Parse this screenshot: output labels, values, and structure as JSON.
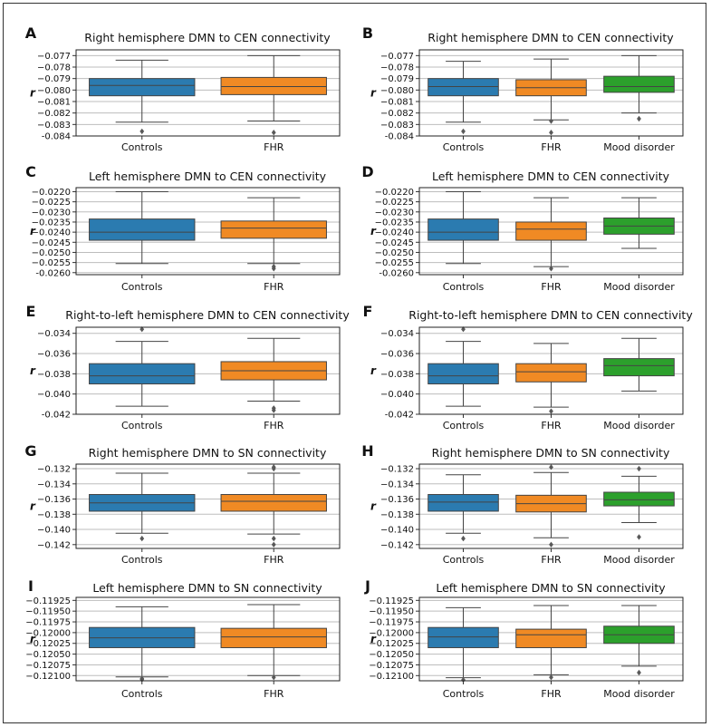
{
  "figure": {
    "ylabel": "r",
    "colors": {
      "Controls": "#2b7bb0",
      "FHR": "#f08a24",
      "Mood disorder": "#2ca02c",
      "whisker": "#444444",
      "grid": "#bdbdbd",
      "flier": "#595959"
    }
  },
  "chart_data": [
    {
      "letter": "A",
      "type": "box",
      "title": "Right hemisphere DMN to CEN connectivity",
      "ylabel": "r",
      "ylim": [
        -0.084,
        -0.0765
      ],
      "yticks": [
        -0.077,
        -0.078,
        -0.079,
        -0.08,
        -0.081,
        -0.082,
        -0.083,
        -0.084
      ],
      "ytick_labels": [
        "−0.077",
        "−0.078",
        "−0.079",
        "−0.080",
        "−0.081",
        "−0.082",
        "−0.083",
        "-0.084"
      ],
      "categories": [
        "Controls",
        "FHR"
      ],
      "boxes": [
        {
          "group": "Controls",
          "whislo": -0.0828,
          "q1": -0.0805,
          "med": -0.0796,
          "q3": -0.079,
          "whishi": -0.0774,
          "fliers": [
            -0.0836
          ]
        },
        {
          "group": "FHR",
          "whislo": -0.0827,
          "q1": -0.0804,
          "med": -0.0797,
          "q3": -0.0789,
          "whishi": -0.077,
          "fliers": [
            -0.0837
          ]
        }
      ]
    },
    {
      "letter": "B",
      "type": "box",
      "title": "Right hemisphere DMN to CEN connectivity",
      "ylabel": "r",
      "ylim": [
        -0.084,
        -0.0765
      ],
      "yticks": [
        -0.077,
        -0.078,
        -0.079,
        -0.08,
        -0.081,
        -0.082,
        -0.083,
        -0.084
      ],
      "ytick_labels": [
        "−0.077",
        "−0.078",
        "−0.079",
        "−0.080",
        "−0.081",
        "−0.082",
        "−0.083",
        "-0.084"
      ],
      "categories": [
        "Controls",
        "FHR",
        "Mood disorder"
      ],
      "boxes": [
        {
          "group": "Controls",
          "whislo": -0.0828,
          "q1": -0.0805,
          "med": -0.0797,
          "q3": -0.079,
          "whishi": -0.0775,
          "fliers": [
            -0.0836
          ]
        },
        {
          "group": "FHR",
          "whislo": -0.0826,
          "q1": -0.0805,
          "med": -0.0798,
          "q3": -0.0791,
          "whishi": -0.0773,
          "fliers": [
            -0.0827,
            -0.0837
          ]
        },
        {
          "group": "Mood disorder",
          "whislo": -0.082,
          "q1": -0.0802,
          "med": -0.0797,
          "q3": -0.0788,
          "whishi": -0.077,
          "fliers": [
            -0.0825
          ]
        }
      ]
    },
    {
      "letter": "C",
      "type": "box",
      "title": "Left hemisphere DMN to CEN connectivity",
      "ylabel": "r",
      "ylim": [
        -0.0261,
        -0.0218
      ],
      "yticks": [
        -0.022,
        -0.0225,
        -0.023,
        -0.0235,
        -0.024,
        -0.0245,
        -0.025,
        -0.0255,
        -0.026
      ],
      "ytick_labels": [
        "−0.0220",
        "−0.0225",
        "−0.0230",
        "−0.0235",
        "−0.0240",
        "−0.0245",
        "−0.0250",
        "−0.0255",
        "-0.0260"
      ],
      "categories": [
        "Controls",
        "FHR"
      ],
      "boxes": [
        {
          "group": "Controls",
          "whislo": -0.02555,
          "q1": -0.0244,
          "med": -0.024,
          "q3": -0.02335,
          "whishi": -0.022,
          "fliers": []
        },
        {
          "group": "FHR",
          "whislo": -0.02555,
          "q1": -0.0243,
          "med": -0.0238,
          "q3": -0.02345,
          "whishi": -0.0223,
          "fliers": [
            -0.0257,
            -0.0258
          ]
        }
      ]
    },
    {
      "letter": "D",
      "type": "box",
      "title": "Left hemisphere DMN to CEN connectivity",
      "ylabel": "r",
      "ylim": [
        -0.0261,
        -0.0218
      ],
      "yticks": [
        -0.022,
        -0.0225,
        -0.023,
        -0.0235,
        -0.024,
        -0.0245,
        -0.025,
        -0.0255,
        -0.026
      ],
      "ytick_labels": [
        "−0.0220",
        "−0.0225",
        "−0.0230",
        "−0.0235",
        "−0.0240",
        "−0.0245",
        "−0.0250",
        "−0.0255",
        "-0.0260"
      ],
      "categories": [
        "Controls",
        "FHR",
        "Mood disorder"
      ],
      "boxes": [
        {
          "group": "Controls",
          "whislo": -0.02555,
          "q1": -0.0244,
          "med": -0.024,
          "q3": -0.02335,
          "whishi": -0.022,
          "fliers": []
        },
        {
          "group": "FHR",
          "whislo": -0.0257,
          "q1": -0.0244,
          "med": -0.02385,
          "q3": -0.0235,
          "whishi": -0.0223,
          "fliers": [
            -0.0258
          ]
        },
        {
          "group": "Mood disorder",
          "whislo": -0.0248,
          "q1": -0.0241,
          "med": -0.0237,
          "q3": -0.0233,
          "whishi": -0.0223,
          "fliers": []
        }
      ]
    },
    {
      "letter": "E",
      "type": "box",
      "title": "Right-to-left hemisphere DMN to CEN connectivity",
      "ylabel": "r",
      "ylim": [
        -0.042,
        -0.0334
      ],
      "yticks": [
        -0.034,
        -0.036,
        -0.038,
        -0.04,
        -0.042
      ],
      "ytick_labels": [
        "−0.034",
        "−0.036",
        "−0.038",
        "−0.040",
        "-0.042"
      ],
      "categories": [
        "Controls",
        "FHR"
      ],
      "boxes": [
        {
          "group": "Controls",
          "whislo": -0.0412,
          "q1": -0.039,
          "med": -0.0382,
          "q3": -0.037,
          "whishi": -0.0348,
          "fliers": [
            -0.0336
          ]
        },
        {
          "group": "FHR",
          "whislo": -0.0407,
          "q1": -0.0386,
          "med": -0.0377,
          "q3": -0.0368,
          "whishi": -0.0345,
          "fliers": [
            -0.0414,
            -0.0416
          ]
        }
      ]
    },
    {
      "letter": "F",
      "type": "box",
      "title": "Right-to-left hemisphere DMN to CEN connectivity",
      "ylabel": "r",
      "ylim": [
        -0.042,
        -0.0334
      ],
      "yticks": [
        -0.034,
        -0.036,
        -0.038,
        -0.04,
        -0.042
      ],
      "ytick_labels": [
        "−0.034",
        "−0.036",
        "−0.038",
        "−0.040",
        "-0.042"
      ],
      "categories": [
        "Controls",
        "FHR",
        "Mood disorder"
      ],
      "boxes": [
        {
          "group": "Controls",
          "whislo": -0.0412,
          "q1": -0.039,
          "med": -0.0382,
          "q3": -0.037,
          "whishi": -0.0348,
          "fliers": [
            -0.0336
          ]
        },
        {
          "group": "FHR",
          "whislo": -0.0413,
          "q1": -0.0388,
          "med": -0.0378,
          "q3": -0.037,
          "whishi": -0.035,
          "fliers": [
            -0.0417
          ]
        },
        {
          "group": "Mood disorder",
          "whislo": -0.0397,
          "q1": -0.0382,
          "med": -0.0372,
          "q3": -0.0365,
          "whishi": -0.0345,
          "fliers": []
        }
      ]
    },
    {
      "letter": "G",
      "type": "box",
      "title": "Right hemisphere DMN to SN connectivity",
      "ylabel": "r",
      "ylim": [
        -0.1425,
        -0.1314
      ],
      "yticks": [
        -0.132,
        -0.134,
        -0.136,
        -0.138,
        -0.14,
        -0.142
      ],
      "ytick_labels": [
        "−0.132",
        "−0.134",
        "−0.136",
        "−0.138",
        "−0.140",
        "−0.142"
      ],
      "categories": [
        "Controls",
        "FHR"
      ],
      "boxes": [
        {
          "group": "Controls",
          "whislo": -0.1405,
          "q1": -0.1376,
          "med": -0.1365,
          "q3": -0.1354,
          "whishi": -0.1326,
          "fliers": [
            -0.1412
          ]
        },
        {
          "group": "FHR",
          "whislo": -0.1406,
          "q1": -0.1376,
          "med": -0.1363,
          "q3": -0.1354,
          "whishi": -0.1326,
          "fliers": [
            -0.1412,
            -0.142,
            -0.1318,
            -0.132
          ]
        }
      ]
    },
    {
      "letter": "H",
      "type": "box",
      "title": "Right hemisphere DMN to SN connectivity",
      "ylabel": "r",
      "ylim": [
        -0.1425,
        -0.1314
      ],
      "yticks": [
        -0.132,
        -0.134,
        -0.136,
        -0.138,
        -0.14,
        -0.142
      ],
      "ytick_labels": [
        "−0.132",
        "−0.134",
        "−0.136",
        "−0.138",
        "−0.140",
        "−0.142"
      ],
      "categories": [
        "Controls",
        "FHR",
        "Mood disorder"
      ],
      "boxes": [
        {
          "group": "Controls",
          "whislo": -0.1405,
          "q1": -0.1376,
          "med": -0.1364,
          "q3": -0.1354,
          "whishi": -0.1328,
          "fliers": [
            -0.1412
          ]
        },
        {
          "group": "FHR",
          "whislo": -0.1411,
          "q1": -0.1377,
          "med": -0.1366,
          "q3": -0.1355,
          "whishi": -0.1325,
          "fliers": [
            -0.142,
            -0.1318
          ]
        },
        {
          "group": "Mood disorder",
          "whislo": -0.1391,
          "q1": -0.1369,
          "med": -0.1361,
          "q3": -0.1351,
          "whishi": -0.133,
          "fliers": [
            -0.141,
            -0.132
          ]
        }
      ]
    },
    {
      "letter": "I",
      "type": "box",
      "title": "Left hemisphere DMN to SN connectivity",
      "ylabel": "r",
      "ylim": [
        -0.12112,
        -0.11918
      ],
      "yticks": [
        -0.11925,
        -0.1195,
        -0.11975,
        -0.12,
        -0.12025,
        -0.1205,
        -0.12075,
        -0.121
      ],
      "ytick_labels": [
        "−0.11925",
        "−0.11950",
        "−0.11975",
        "−0.12000",
        "−0.12025",
        "−0.12050",
        "−0.12075",
        "−0.12100"
      ],
      "categories": [
        "Controls",
        "FHR"
      ],
      "boxes": [
        {
          "group": "Controls",
          "whislo": -0.12103,
          "q1": -0.12035,
          "med": -0.12012,
          "q3": -0.11988,
          "whishi": -0.1194,
          "fliers": [
            -0.12107,
            -0.12109
          ]
        },
        {
          "group": "FHR",
          "whislo": -0.121,
          "q1": -0.12035,
          "med": -0.1201,
          "q3": -0.1199,
          "whishi": -0.11935,
          "fliers": [
            -0.12104
          ]
        }
      ]
    },
    {
      "letter": "J",
      "type": "box",
      "title": "Left hemisphere DMN to SN connectivity",
      "ylabel": "r",
      "ylim": [
        -0.12112,
        -0.11918
      ],
      "yticks": [
        -0.11925,
        -0.1195,
        -0.11975,
        -0.12,
        -0.12025,
        -0.1205,
        -0.12075,
        -0.121
      ],
      "ytick_labels": [
        "−0.11925",
        "−0.11950",
        "−0.11975",
        "−0.12000",
        "−0.12025",
        "−0.12050",
        "−0.12075",
        "−0.12100"
      ],
      "categories": [
        "Controls",
        "FHR",
        "Mood disorder"
      ],
      "boxes": [
        {
          "group": "Controls",
          "whislo": -0.12105,
          "q1": -0.12035,
          "med": -0.1201,
          "q3": -0.11988,
          "whishi": -0.11942,
          "fliers": [
            -0.1211
          ]
        },
        {
          "group": "FHR",
          "whislo": -0.12098,
          "q1": -0.12035,
          "med": -0.12005,
          "q3": -0.11992,
          "whishi": -0.11937,
          "fliers": [
            -0.12104
          ]
        },
        {
          "group": "Mood disorder",
          "whislo": -0.12078,
          "q1": -0.12025,
          "med": -0.12005,
          "q3": -0.11985,
          "whishi": -0.11937,
          "fliers": [
            -0.12093
          ]
        }
      ]
    }
  ]
}
